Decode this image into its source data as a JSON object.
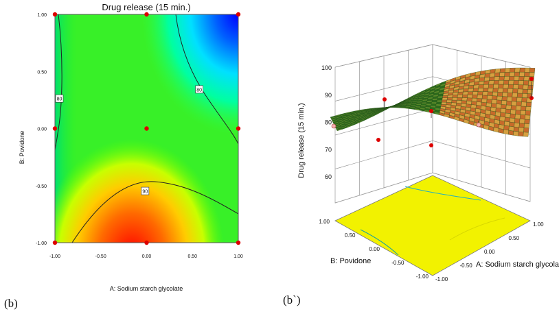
{
  "panel_labels": {
    "left": "(b)",
    "right": "(b`)"
  },
  "chart_data": [
    {
      "type": "contour",
      "title": "Drug release (15 min.)",
      "xlabel": "A: Sodium starch glycolate",
      "ylabel": "B: Povidone",
      "xlim": [
        -1,
        1
      ],
      "ylim": [
        -1,
        1
      ],
      "xticks": [
        "-1.00",
        "-0.50",
        "0.00",
        "0.50",
        "1.00"
      ],
      "yticks": [
        "-1.00",
        "-0.50",
        "0.00",
        "0.50",
        "1.00"
      ],
      "design_points": [
        {
          "x": -1,
          "y": 1
        },
        {
          "x": 0,
          "y": 1
        },
        {
          "x": 1,
          "y": 1
        },
        {
          "x": -1,
          "y": 0
        },
        {
          "x": 0,
          "y": 0
        },
        {
          "x": 1,
          "y": 0
        },
        {
          "x": -1,
          "y": -1
        },
        {
          "x": 0,
          "y": -1
        },
        {
          "x": 1,
          "y": -1
        }
      ],
      "contour_labels": [
        {
          "value": "80",
          "position": "left edge, near B = 0.25"
        },
        {
          "value": "80",
          "position": "upper right, near A = 0.55, B = 0.35"
        },
        {
          "value": "90",
          "position": "lower centre, near A = 0.0, B = -0.55"
        }
      ],
      "color_scale": "blue (low) to green to yellow to red (high)",
      "colors": {
        "low": "#0000ff",
        "mid": "#00e000",
        "high": "#ff0000",
        "point": "#dd0000"
      }
    },
    {
      "type": "surface3d",
      "zlabel": "Drug release (15 min.)",
      "xlabel": "A: Sodium starch glycolate",
      "ylabel": "B: Povidone",
      "zticks": [
        "60",
        "70",
        "80",
        "90",
        "100"
      ],
      "zlim": [
        60,
        100
      ],
      "xticks": [
        "-1.00",
        "-0.50",
        "0.00",
        "0.50",
        "1.00"
      ],
      "yticks": [
        "-1.00",
        "-0.50",
        "0.00",
        "0.50",
        "1.00"
      ],
      "floor_color": "#f2f200",
      "surface_colors": [
        "#2a6b1a",
        "#5a8a2a",
        "#c86a2a",
        "#d6a040"
      ]
    }
  ]
}
